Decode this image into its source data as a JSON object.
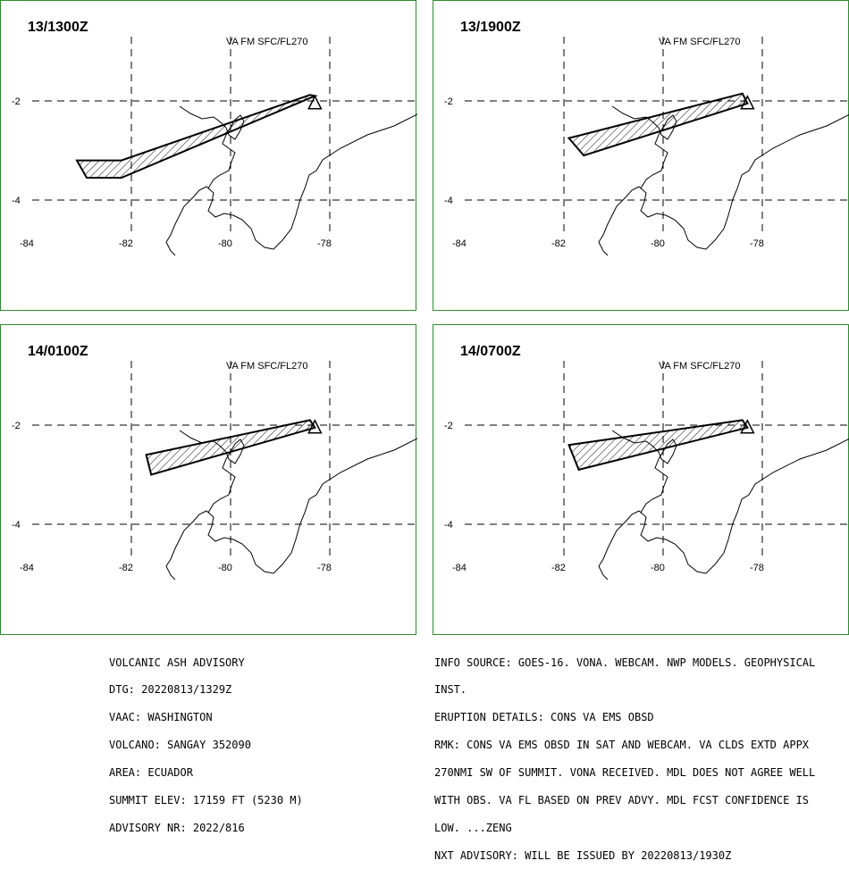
{
  "header_label": "VA FM SFC/FL270",
  "axes": {
    "lon_ticks": [
      "-84",
      "-82",
      "-80",
      "-78"
    ],
    "lat_ticks": [
      "-2",
      "-4"
    ]
  },
  "panels": [
    {
      "time": "13/1300Z",
      "plume": [
        [
          -78.3,
          -1.9
        ],
        [
          -82.2,
          -3.55
        ],
        [
          -82.9,
          -3.55
        ],
        [
          -83.1,
          -3.2
        ],
        [
          -82.2,
          -3.2
        ],
        [
          -78.4,
          -1.88
        ]
      ]
    },
    {
      "time": "13/1900Z",
      "plume": [
        [
          -78.4,
          -1.85
        ],
        [
          -81.7,
          -2.7
        ],
        [
          -81.9,
          -2.75
        ],
        [
          -81.6,
          -3.1
        ],
        [
          -78.3,
          -2.05
        ]
      ]
    },
    {
      "time": "14/0100Z",
      "plume": [
        [
          -78.4,
          -1.9
        ],
        [
          -81.7,
          -2.6
        ],
        [
          -81.6,
          -3.0
        ],
        [
          -78.3,
          -2.05
        ]
      ]
    },
    {
      "time": "14/0700Z",
      "plume": [
        [
          -78.4,
          -1.9
        ],
        [
          -81.9,
          -2.4
        ],
        [
          -81.7,
          -2.9
        ],
        [
          -78.3,
          -2.05
        ]
      ]
    }
  ],
  "advisory": {
    "lines": [
      "VOLCANIC ASH ADVISORY",
      "DTG: 20220813/1329Z",
      "VAAC: WASHINGTON",
      "VOLCANO: SANGAY 352090",
      "AREA: ECUADOR",
      "SUMMIT ELEV: 17159 FT (5230 M)",
      "ADVISORY NR: 2022/816"
    ]
  },
  "info": {
    "lines": [
      "INFO SOURCE: GOES-16. VONA. WEBCAM. NWP MODELS. GEOPHYSICAL",
      "INST.",
      "ERUPTION DETAILS: CONS VA EMS OBSD",
      "RMK: CONS VA EMS OBSD IN SAT AND WEBCAM. VA CLDS EXTD APPX",
      "270NMI SW OF SUMMIT. VONA RECEIVED. MDL DOES NOT AGREE WELL",
      "WITH OBS. VA FL BASED ON PREV ADVY. MDL FCST CONFIDENCE IS",
      "LOW. ...ZENG",
      "NXT ADVISORY: WILL BE ISSUED BY 20220813/1930Z"
    ]
  },
  "colors": {
    "frame": "#2e8b2e",
    "ink": "#000000"
  }
}
